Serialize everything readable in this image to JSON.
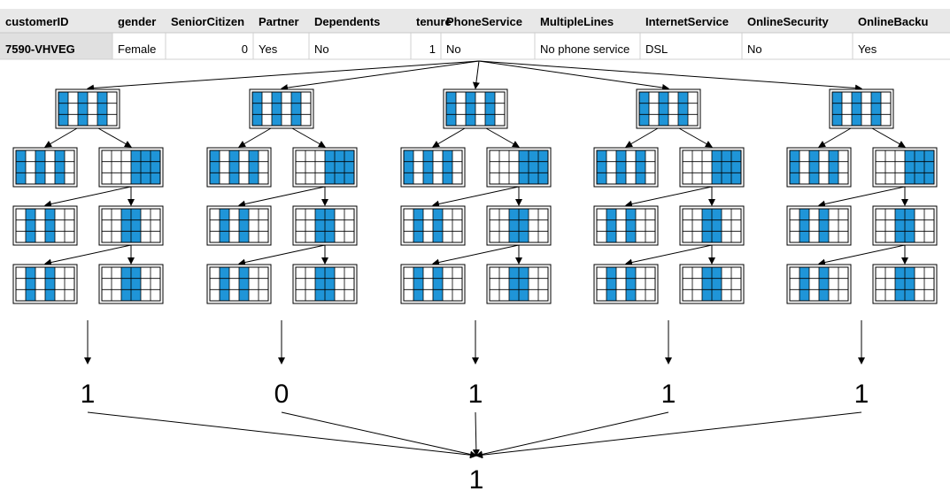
{
  "table": {
    "columns": [
      "customerID",
      "gender",
      "SeniorCitizen",
      "Partner",
      "Dependents",
      "tenure",
      "PhoneService",
      "MultipleLines",
      "InternetService",
      "OnlineSecurity",
      "OnlineBacku"
    ],
    "row": [
      "7590-VHVEG",
      "Female",
      "0",
      "Yes",
      "No",
      "1",
      "No",
      "No phone service",
      "DSL",
      "No",
      "Yes"
    ]
  },
  "trees": [
    {
      "prediction": "1"
    },
    {
      "prediction": "0"
    },
    {
      "prediction": "1"
    },
    {
      "prediction": "1"
    },
    {
      "prediction": "1"
    }
  ],
  "final_prediction": "1",
  "colors": {
    "cell_fill": "#1f95d8",
    "header_bg": "#e8e8e8",
    "first_cell_bg": "#e0e0e0",
    "line": "#000000"
  }
}
